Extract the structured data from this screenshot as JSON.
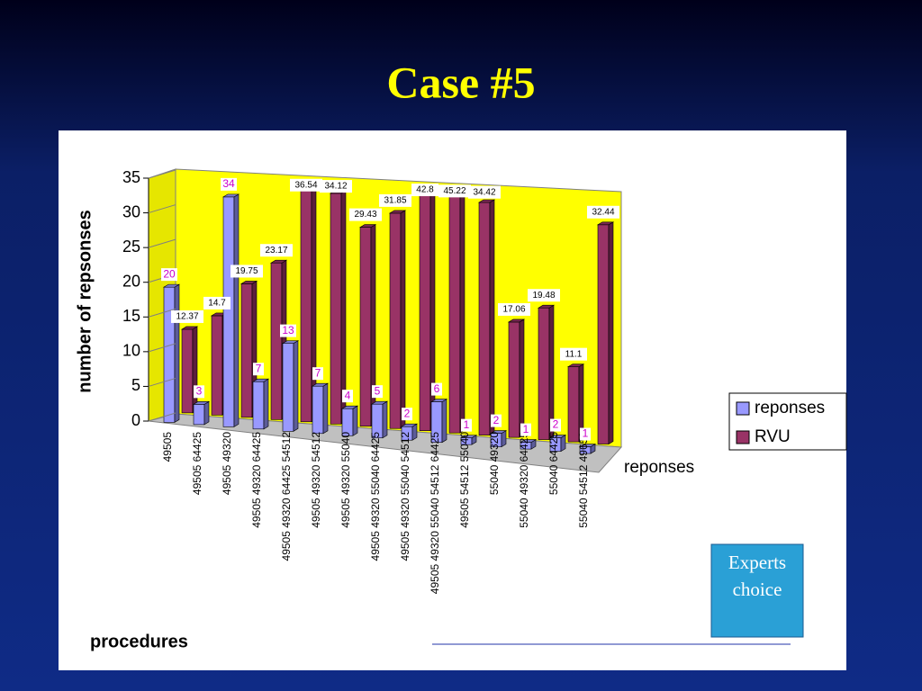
{
  "title": "Case #5",
  "chart_data": {
    "type": "bar3d",
    "y_label": "number of repsonses",
    "x_label": "procedures",
    "z_label": "reponses",
    "categories": [
      "49505",
      "49505 64425",
      "49505 49320",
      "49505 49320 64425",
      "49505 49320 64425 54512",
      "49505 49320 54512",
      "49505 49320 55040",
      "49505 49320 55040 64425",
      "49505 49320 55040 54512",
      "49505 49320 55040 54512 64425",
      "49505 54512 55040",
      "55040 49320",
      "55040 49320 64425",
      "55040 64425",
      "55040 54512 49650"
    ],
    "series": [
      {
        "name": "reponses",
        "color": "#9999ff",
        "values": [
          20,
          3,
          34,
          7,
          13,
          7,
          4,
          5,
          2,
          6,
          1,
          2,
          1,
          2,
          1
        ]
      },
      {
        "name": "RVU",
        "color": "#993366",
        "values": [
          12.37,
          14.7,
          19.75,
          23.17,
          36.54,
          34.12,
          29.43,
          31.85,
          42.8,
          45.22,
          34.42,
          17.06,
          19.48,
          11.1,
          32.44
        ]
      }
    ],
    "ylim": [
      0,
      35
    ],
    "yticks": [
      0,
      5,
      10,
      15,
      20,
      25,
      30,
      35
    ],
    "legend": "right"
  },
  "callout": "Experts choice"
}
